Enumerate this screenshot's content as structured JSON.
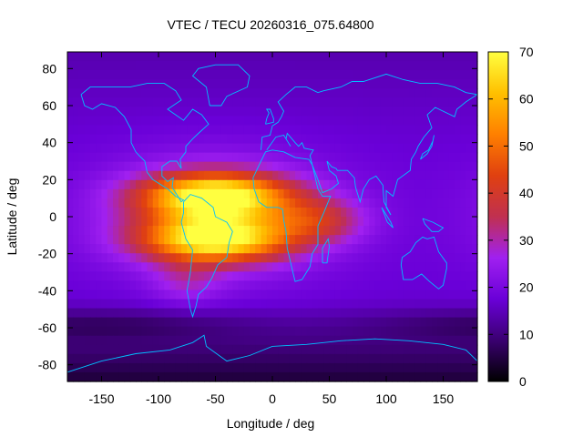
{
  "chart_data": {
    "type": "heatmap",
    "title": "VTEC / TECU 20260316_075.64800",
    "xlabel": "Longitude / deg",
    "ylabel": "Latitude / deg",
    "xlim": [
      -180,
      180
    ],
    "ylim": [
      -89,
      89
    ],
    "x_ticks": [
      -150,
      -100,
      -50,
      0,
      50,
      100,
      150
    ],
    "y_ticks": [
      80,
      60,
      40,
      20,
      0,
      -20,
      -40,
      -60,
      -80
    ],
    "colorbar": {
      "range": [
        0,
        70
      ],
      "ticks": [
        0,
        10,
        20,
        30,
        40,
        50,
        60,
        70
      ],
      "palette": [
        "#000000",
        "#3a0070",
        "#6a00d8",
        "#a020f0",
        "#c03050",
        "#e04010",
        "#ff8000",
        "#ffc000",
        "#ffff40"
      ]
    },
    "coastline_color": "#00c0ff",
    "grid": false,
    "features": [
      {
        "name": "main crest over South America / Atlantic",
        "lon": -50,
        "lat": 0,
        "vtec": 68
      },
      {
        "name": "northern lobe",
        "lon": -55,
        "lat": 12,
        "vtec": 65
      },
      {
        "name": "southern lobe",
        "lon": -55,
        "lat": -13,
        "vtec": 64
      },
      {
        "name": "Africa extension",
        "lon": 30,
        "lat": 0,
        "vtec": 38
      },
      {
        "name": "Indian Ocean tail",
        "lon": 75,
        "lat": 0,
        "vtec": 30
      },
      {
        "name": "background high latitudes",
        "lon": 100,
        "lat": 60,
        "vtec": 18
      },
      {
        "name": "southern low",
        "lon": -175,
        "lat": -60,
        "vtec": 5
      }
    ]
  }
}
